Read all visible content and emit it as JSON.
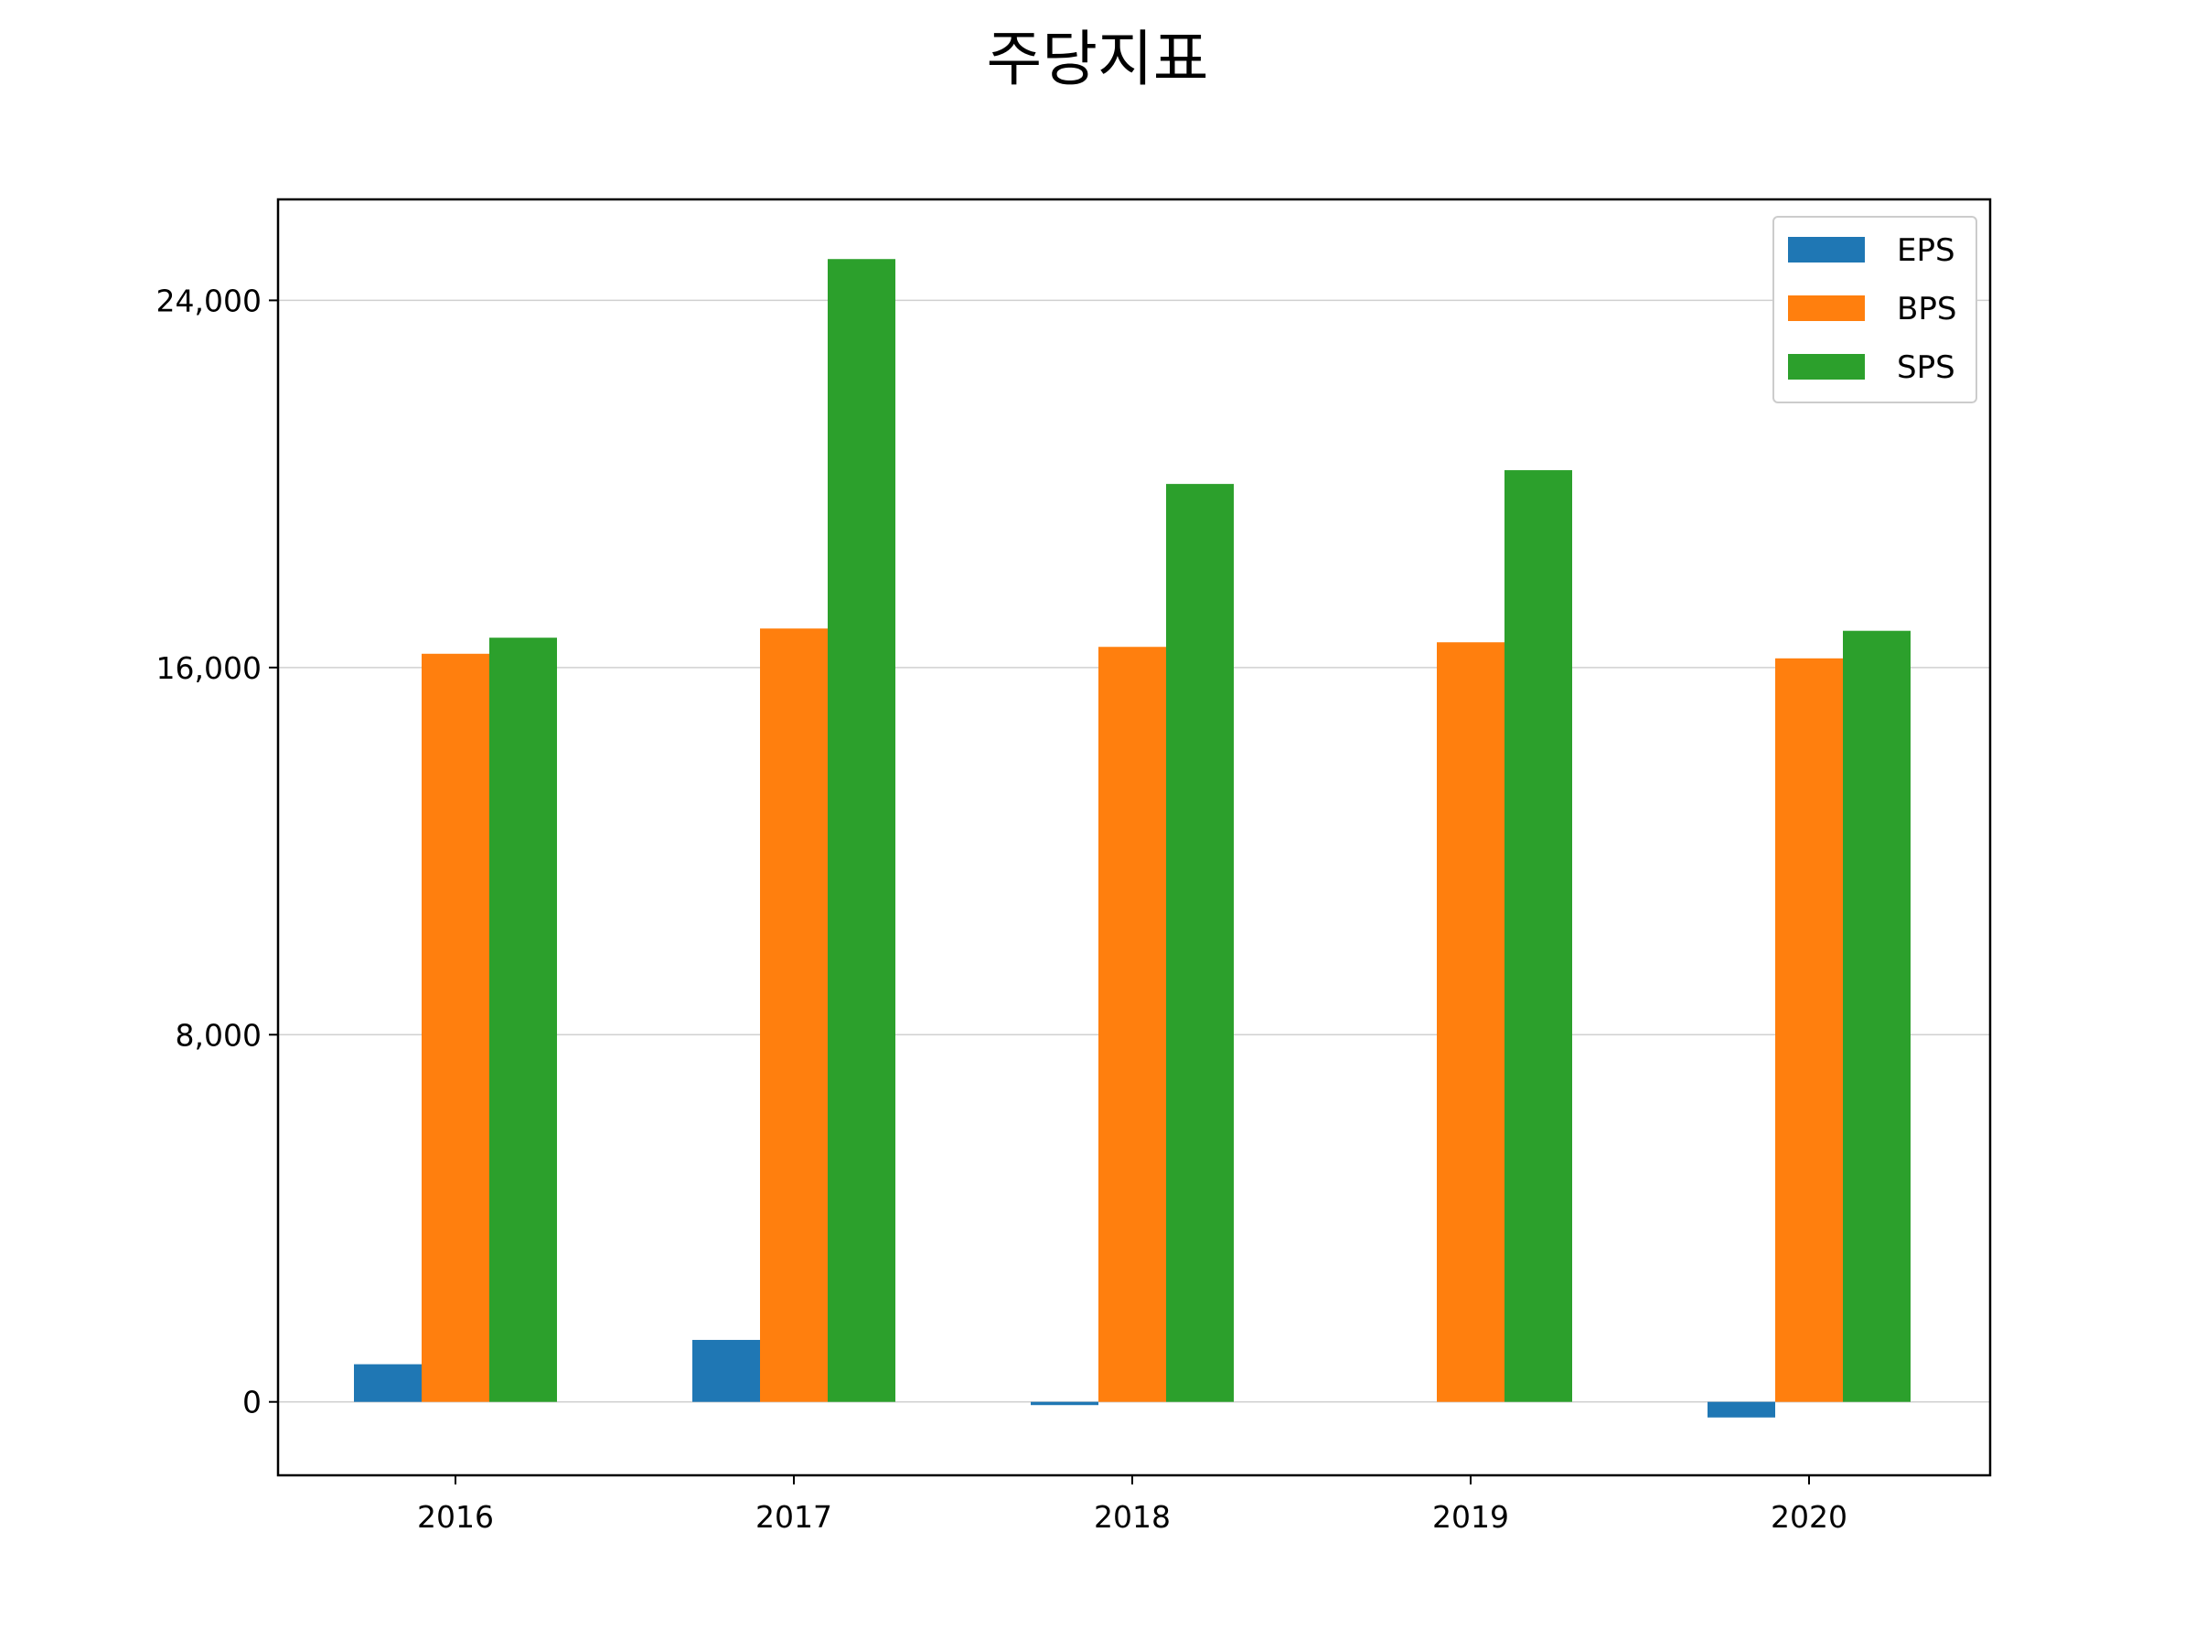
{
  "chart_data": {
    "type": "bar",
    "title": "주당지표",
    "categories": [
      "2016",
      "2017",
      "2018",
      "2019",
      "2020"
    ],
    "series": [
      {
        "name": "EPS",
        "color": "#1f77b4",
        "values": [
          820,
          1350,
          -70,
          0,
          -340
        ]
      },
      {
        "name": "BPS",
        "color": "#ff7f0e",
        "values": [
          16300,
          16850,
          16450,
          16550,
          16200
        ]
      },
      {
        "name": "SPS",
        "color": "#2ca02c",
        "values": [
          16650,
          24900,
          20000,
          20300,
          16800
        ]
      }
    ],
    "yticks": [
      0,
      8000,
      16000,
      24000
    ],
    "ytick_labels": [
      "0",
      "8,000",
      "16,000",
      "24,000"
    ],
    "ylim": [
      -1600,
      26200
    ],
    "xlabel": "",
    "ylabel": "",
    "grid": "horizontal",
    "legend_position": "top-right"
  }
}
